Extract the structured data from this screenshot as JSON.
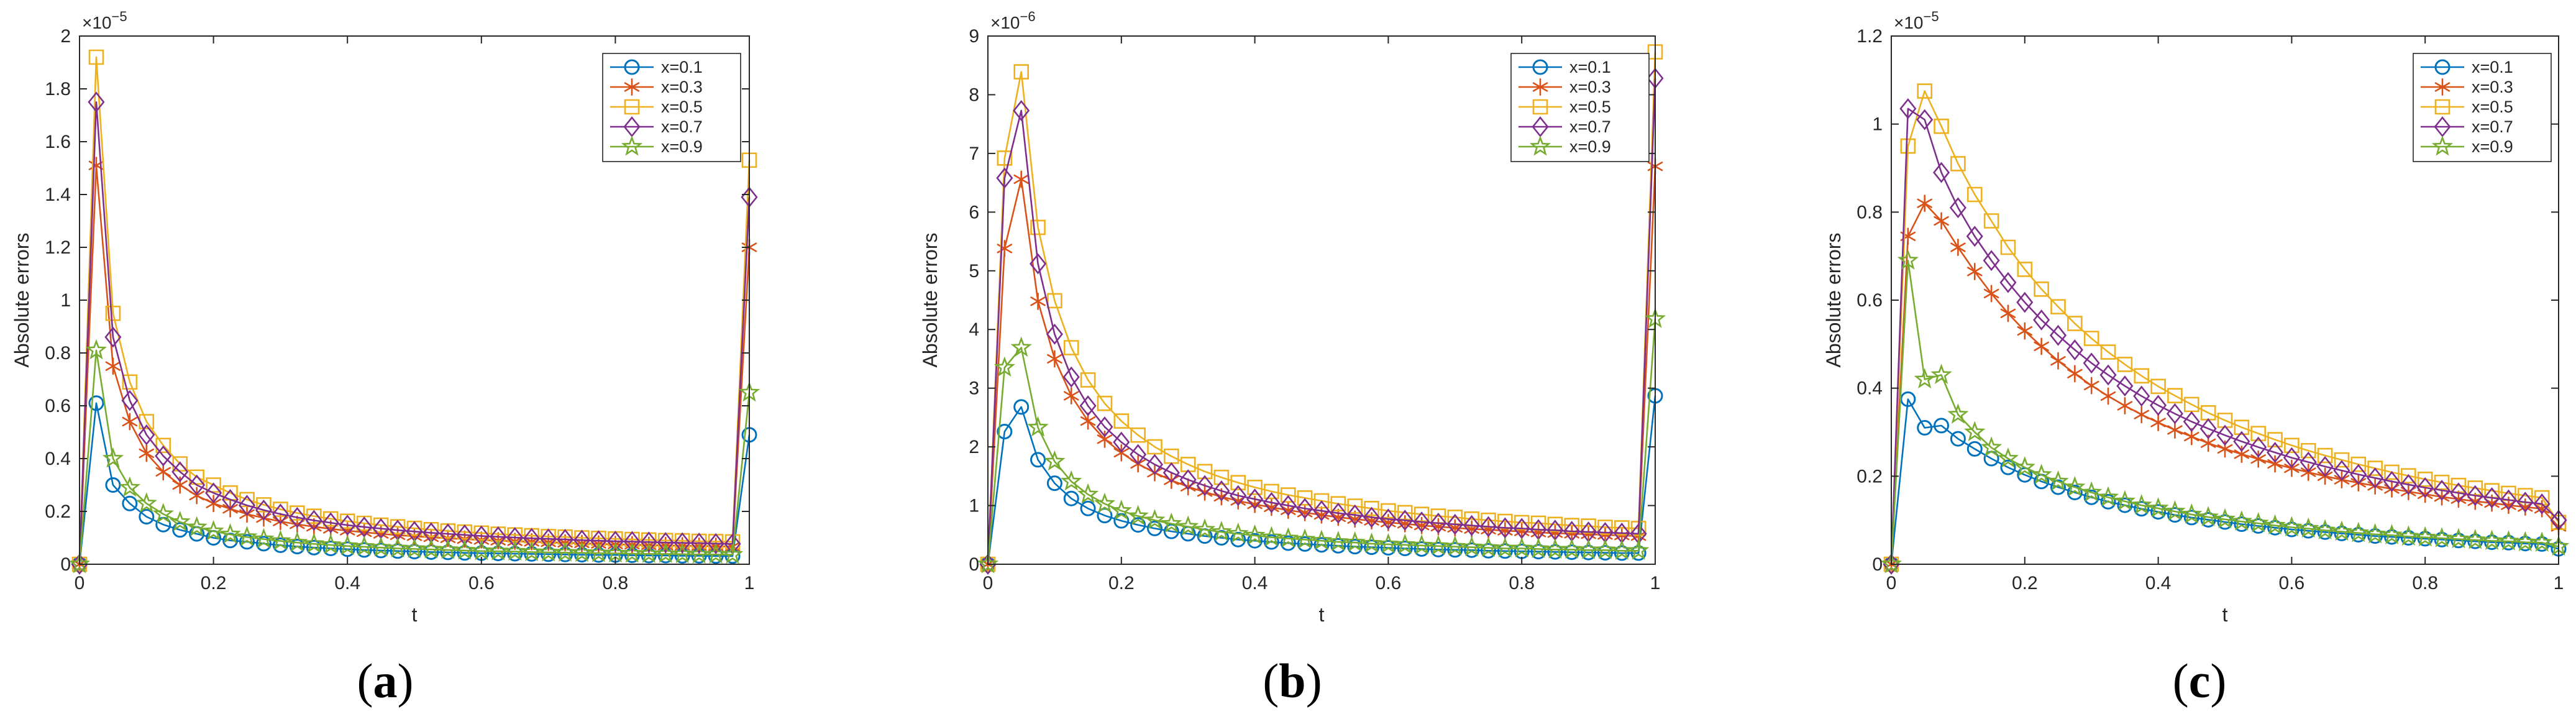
{
  "chart_data": [
    {
      "type": "line",
      "panel": "a",
      "caption_open": "(",
      "caption_letter": "a",
      "caption_close": ")",
      "xlabel": "t",
      "ylabel": "Absolute errors",
      "exponent_base": "×10",
      "exponent_power": "−5",
      "xlim": [
        0,
        1
      ],
      "ylim": [
        0,
        2
      ],
      "xticks": [
        0,
        0.2,
        0.4,
        0.6,
        0.8,
        1
      ],
      "xtick_labels": [
        "0",
        "0.2",
        "0.4",
        "0.6",
        "0.8",
        "1"
      ],
      "yticks": [
        0,
        0.2,
        0.4,
        0.6,
        0.8,
        1,
        1.2,
        1.4,
        1.6,
        1.8,
        2
      ],
      "ytick_labels": [
        "0",
        "0.2",
        "0.4",
        "0.6",
        "0.8",
        "1",
        "1.2",
        "1.4",
        "1.6",
        "1.8",
        "2"
      ],
      "legend_position": "top-right",
      "series": [
        {
          "name": "x=0.1",
          "color": "#0072BD",
          "marker": "circle",
          "values": [
            0,
            0.61,
            0.3,
            0.23,
            0.18,
            0.15,
            0.13,
            0.115,
            0.1,
            0.09,
            0.085,
            0.078,
            0.072,
            0.067,
            0.063,
            0.06,
            0.057,
            0.054,
            0.052,
            0.05,
            0.048,
            0.046,
            0.045,
            0.043,
            0.042,
            0.041,
            0.04,
            0.039,
            0.038,
            0.037,
            0.036,
            0.035,
            0.035,
            0.034,
            0.033,
            0.033,
            0.032,
            0.032,
            0.031,
            0.031,
            0.49
          ]
        },
        {
          "name": "x=0.3",
          "color": "#D95319",
          "marker": "asterisk",
          "values": [
            0,
            1.51,
            0.75,
            0.54,
            0.42,
            0.35,
            0.3,
            0.26,
            0.23,
            0.21,
            0.19,
            0.175,
            0.162,
            0.151,
            0.142,
            0.134,
            0.127,
            0.121,
            0.115,
            0.11,
            0.106,
            0.102,
            0.098,
            0.095,
            0.092,
            0.089,
            0.087,
            0.085,
            0.083,
            0.081,
            0.079,
            0.077,
            0.075,
            0.074,
            0.072,
            0.071,
            0.07,
            0.069,
            0.068,
            0.067,
            1.2
          ]
        },
        {
          "name": "x=0.5",
          "color": "#EDB120",
          "marker": "square",
          "values": [
            0,
            1.92,
            0.95,
            0.69,
            0.54,
            0.45,
            0.38,
            0.33,
            0.3,
            0.27,
            0.245,
            0.225,
            0.208,
            0.194,
            0.182,
            0.172,
            0.163,
            0.155,
            0.148,
            0.142,
            0.136,
            0.131,
            0.126,
            0.122,
            0.118,
            0.114,
            0.111,
            0.108,
            0.105,
            0.103,
            0.1,
            0.098,
            0.096,
            0.094,
            0.092,
            0.09,
            0.089,
            0.087,
            0.086,
            0.085,
            1.53
          ]
        },
        {
          "name": "x=0.7",
          "color": "#7E2F8E",
          "marker": "diamond",
          "values": [
            0,
            1.75,
            0.86,
            0.62,
            0.49,
            0.41,
            0.35,
            0.3,
            0.27,
            0.245,
            0.223,
            0.205,
            0.19,
            0.177,
            0.166,
            0.157,
            0.148,
            0.141,
            0.135,
            0.129,
            0.124,
            0.119,
            0.115,
            0.111,
            0.107,
            0.104,
            0.101,
            0.098,
            0.096,
            0.094,
            0.091,
            0.089,
            0.087,
            0.086,
            0.084,
            0.082,
            0.081,
            0.08,
            0.078,
            0.077,
            1.39
          ]
        },
        {
          "name": "x=0.9",
          "color": "#77AC30",
          "marker": "pentagram",
          "values": [
            0,
            0.81,
            0.4,
            0.29,
            0.23,
            0.19,
            0.16,
            0.14,
            0.125,
            0.113,
            0.103,
            0.095,
            0.088,
            0.082,
            0.077,
            0.073,
            0.069,
            0.066,
            0.063,
            0.06,
            0.058,
            0.056,
            0.054,
            0.052,
            0.05,
            0.049,
            0.048,
            0.046,
            0.045,
            0.044,
            0.043,
            0.042,
            0.041,
            0.04,
            0.039,
            0.039,
            0.038,
            0.037,
            0.037,
            0.036,
            0.65
          ]
        }
      ]
    },
    {
      "type": "line",
      "panel": "b",
      "caption_open": "(",
      "caption_letter": "b",
      "caption_close": ")",
      "xlabel": "t",
      "ylabel": "Absolute errors",
      "exponent_base": "×10",
      "exponent_power": "−6",
      "xlim": [
        0,
        1
      ],
      "ylim": [
        0,
        9
      ],
      "xticks": [
        0,
        0.2,
        0.4,
        0.6,
        0.8,
        1
      ],
      "xtick_labels": [
        "0",
        "0.2",
        "0.4",
        "0.6",
        "0.8",
        "1"
      ],
      "yticks": [
        0,
        1,
        2,
        3,
        4,
        5,
        6,
        7,
        8,
        9
      ],
      "ytick_labels": [
        "0",
        "1",
        "2",
        "3",
        "4",
        "5",
        "6",
        "7",
        "8",
        "9"
      ],
      "legend_position": "top-right",
      "series": [
        {
          "name": "x=0.1",
          "color": "#0072BD",
          "marker": "circle",
          "values": [
            0,
            2.26,
            2.68,
            1.78,
            1.38,
            1.12,
            0.95,
            0.83,
            0.74,
            0.67,
            0.61,
            0.56,
            0.52,
            0.48,
            0.45,
            0.42,
            0.4,
            0.38,
            0.36,
            0.345,
            0.33,
            0.315,
            0.3,
            0.29,
            0.28,
            0.27,
            0.26,
            0.25,
            0.245,
            0.24,
            0.23,
            0.225,
            0.22,
            0.215,
            0.21,
            0.205,
            0.2,
            0.195,
            0.19,
            0.19,
            2.87
          ]
        },
        {
          "name": "x=0.3",
          "color": "#D95319",
          "marker": "asterisk",
          "values": [
            0,
            5.38,
            6.56,
            4.48,
            3.5,
            2.87,
            2.44,
            2.13,
            1.9,
            1.71,
            1.56,
            1.43,
            1.32,
            1.23,
            1.15,
            1.08,
            1.02,
            0.97,
            0.92,
            0.88,
            0.84,
            0.8,
            0.77,
            0.74,
            0.71,
            0.69,
            0.66,
            0.64,
            0.62,
            0.6,
            0.59,
            0.57,
            0.56,
            0.54,
            0.53,
            0.52,
            0.51,
            0.5,
            0.49,
            0.48,
            6.78
          ]
        },
        {
          "name": "x=0.5",
          "color": "#EDB120",
          "marker": "square",
          "values": [
            0,
            6.92,
            8.39,
            5.74,
            4.49,
            3.69,
            3.14,
            2.74,
            2.44,
            2.2,
            2.0,
            1.84,
            1.7,
            1.58,
            1.48,
            1.39,
            1.31,
            1.24,
            1.18,
            1.13,
            1.08,
            1.03,
            0.99,
            0.95,
            0.91,
            0.88,
            0.85,
            0.82,
            0.8,
            0.77,
            0.75,
            0.73,
            0.71,
            0.7,
            0.68,
            0.66,
            0.65,
            0.63,
            0.62,
            0.61,
            8.73
          ]
        },
        {
          "name": "x=0.7",
          "color": "#7E2F8E",
          "marker": "diamond",
          "values": [
            0,
            6.58,
            7.73,
            5.12,
            3.92,
            3.19,
            2.7,
            2.34,
            2.08,
            1.87,
            1.7,
            1.56,
            1.44,
            1.34,
            1.25,
            1.17,
            1.11,
            1.05,
            1.0,
            0.95,
            0.91,
            0.87,
            0.84,
            0.8,
            0.77,
            0.75,
            0.72,
            0.7,
            0.68,
            0.66,
            0.64,
            0.62,
            0.61,
            0.59,
            0.58,
            0.56,
            0.55,
            0.54,
            0.53,
            0.52,
            8.28
          ]
        },
        {
          "name": "x=0.9",
          "color": "#77AC30",
          "marker": "pentagram",
          "values": [
            0,
            3.35,
            3.69,
            2.33,
            1.75,
            1.41,
            1.19,
            1.03,
            0.91,
            0.82,
            0.75,
            0.69,
            0.64,
            0.59,
            0.55,
            0.52,
            0.49,
            0.46,
            0.44,
            0.42,
            0.4,
            0.38,
            0.37,
            0.35,
            0.34,
            0.33,
            0.32,
            0.31,
            0.3,
            0.29,
            0.28,
            0.27,
            0.27,
            0.26,
            0.25,
            0.25,
            0.24,
            0.24,
            0.23,
            0.23,
            4.18
          ]
        }
      ]
    },
    {
      "type": "line",
      "panel": "c",
      "caption_open": "(",
      "caption_letter": "c",
      "caption_close": ")",
      "xlabel": "t",
      "ylabel": "Absolute errors",
      "exponent_base": "×10",
      "exponent_power": "−5",
      "xlim": [
        0,
        1
      ],
      "ylim": [
        0,
        1.2
      ],
      "xticks": [
        0,
        0.2,
        0.4,
        0.6,
        0.8,
        1
      ],
      "xtick_labels": [
        "0",
        "0.2",
        "0.4",
        "0.6",
        "0.8",
        "1"
      ],
      "yticks": [
        0,
        0.2,
        0.4,
        0.6,
        0.8,
        1,
        1.2
      ],
      "ytick_labels": [
        "0",
        "0.2",
        "0.4",
        "0.6",
        "0.8",
        "1",
        "1.2"
      ],
      "legend_position": "top-right",
      "series": [
        {
          "name": "x=0.1",
          "color": "#0072BD",
          "marker": "circle",
          "values": [
            0,
            0.375,
            0.31,
            0.315,
            0.285,
            0.262,
            0.24,
            0.22,
            0.203,
            0.188,
            0.175,
            0.163,
            0.152,
            0.142,
            0.134,
            0.126,
            0.119,
            0.112,
            0.106,
            0.101,
            0.096,
            0.091,
            0.087,
            0.083,
            0.079,
            0.076,
            0.073,
            0.07,
            0.067,
            0.064,
            0.062,
            0.06,
            0.058,
            0.056,
            0.054,
            0.052,
            0.05,
            0.049,
            0.047,
            0.046,
            0.035
          ]
        },
        {
          "name": "x=0.3",
          "color": "#D95319",
          "marker": "asterisk",
          "values": [
            0,
            0.745,
            0.82,
            0.78,
            0.72,
            0.665,
            0.615,
            0.57,
            0.53,
            0.495,
            0.462,
            0.433,
            0.406,
            0.382,
            0.36,
            0.34,
            0.322,
            0.305,
            0.29,
            0.275,
            0.262,
            0.25,
            0.239,
            0.228,
            0.218,
            0.209,
            0.2,
            0.192,
            0.185,
            0.178,
            0.171,
            0.165,
            0.159,
            0.153,
            0.148,
            0.143,
            0.139,
            0.134,
            0.13,
            0.126,
            0.085
          ]
        },
        {
          "name": "x=0.5",
          "color": "#EDB120",
          "marker": "square",
          "values": [
            0,
            0.95,
            1.075,
            0.995,
            0.91,
            0.84,
            0.78,
            0.72,
            0.67,
            0.625,
            0.585,
            0.547,
            0.513,
            0.482,
            0.454,
            0.428,
            0.404,
            0.383,
            0.363,
            0.344,
            0.327,
            0.311,
            0.297,
            0.283,
            0.27,
            0.258,
            0.247,
            0.237,
            0.227,
            0.218,
            0.209,
            0.201,
            0.193,
            0.186,
            0.179,
            0.173,
            0.167,
            0.161,
            0.156,
            0.151,
            0.095
          ]
        },
        {
          "name": "x=0.7",
          "color": "#7E2F8E",
          "marker": "diamond",
          "values": [
            0,
            1.035,
            1.01,
            0.89,
            0.81,
            0.745,
            0.69,
            0.64,
            0.595,
            0.555,
            0.52,
            0.487,
            0.457,
            0.43,
            0.405,
            0.382,
            0.361,
            0.342,
            0.324,
            0.308,
            0.293,
            0.279,
            0.266,
            0.254,
            0.242,
            0.232,
            0.222,
            0.213,
            0.204,
            0.196,
            0.188,
            0.181,
            0.174,
            0.168,
            0.162,
            0.156,
            0.151,
            0.146,
            0.141,
            0.137,
            0.1
          ]
        },
        {
          "name": "x=0.9",
          "color": "#77AC30",
          "marker": "pentagram",
          "values": [
            0,
            0.69,
            0.42,
            0.43,
            0.34,
            0.3,
            0.265,
            0.24,
            0.22,
            0.203,
            0.188,
            0.175,
            0.163,
            0.152,
            0.143,
            0.134,
            0.127,
            0.12,
            0.113,
            0.107,
            0.102,
            0.097,
            0.093,
            0.088,
            0.084,
            0.081,
            0.077,
            0.074,
            0.071,
            0.068,
            0.066,
            0.063,
            0.061,
            0.059,
            0.057,
            0.055,
            0.053,
            0.052,
            0.05,
            0.049,
            0.04
          ]
        }
      ]
    }
  ]
}
